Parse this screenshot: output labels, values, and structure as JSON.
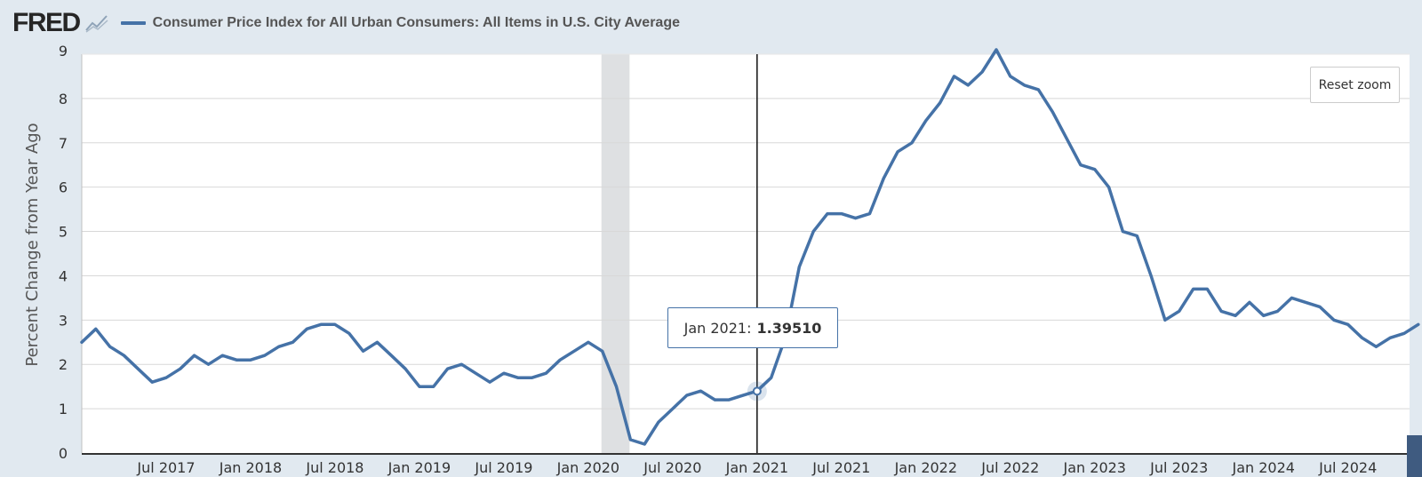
{
  "header": {
    "logo": "FRED",
    "series_name": "Consumer Price Index for All Urban Consumers: All Items in U.S. City Average"
  },
  "reset_zoom_label": "Reset zoom",
  "tooltip": {
    "date": "Jan 2021:",
    "value": "1.39510"
  },
  "colors": {
    "line": "#4572a7",
    "recession": "#dee0e2",
    "grid": "#d8d8d8",
    "plot_bg": "#ffffff",
    "page_bg": "#e1e9f0"
  },
  "chart_data": {
    "type": "line",
    "title": "Consumer Price Index for All Urban Consumers: All Items in U.S. City Average",
    "xlabel": "",
    "ylabel": "Percent Change from Year Ago",
    "ylim": [
      0,
      9
    ],
    "yticks": [
      0,
      1,
      2,
      3,
      4,
      5,
      6,
      7,
      8,
      9
    ],
    "x_start": "2017-01",
    "x_end": "2024-12",
    "xtick_labels": [
      {
        "month_index": 6,
        "label": "Jul 2017"
      },
      {
        "month_index": 12,
        "label": "Jan 2018"
      },
      {
        "month_index": 18,
        "label": "Jul 2018"
      },
      {
        "month_index": 24,
        "label": "Jan 2019"
      },
      {
        "month_index": 30,
        "label": "Jul 2019"
      },
      {
        "month_index": 36,
        "label": "Jan 2020"
      },
      {
        "month_index": 42,
        "label": "Jul 2020"
      },
      {
        "month_index": 48,
        "label": "Jan 2021"
      },
      {
        "month_index": 54,
        "label": "Jul 2021"
      },
      {
        "month_index": 60,
        "label": "Jan 2022"
      },
      {
        "month_index": 66,
        "label": "Jul 2022"
      },
      {
        "month_index": 72,
        "label": "Jan 2023"
      },
      {
        "month_index": 78,
        "label": "Jul 2023"
      },
      {
        "month_index": 84,
        "label": "Jan 2024"
      },
      {
        "month_index": 90,
        "label": "Jul 2024"
      }
    ],
    "recession": {
      "start_month_index": 37,
      "end_month_index": 39
    },
    "crosshair_month_index": 48,
    "highlight": {
      "month_index": 48,
      "value": 1.3951
    },
    "series": [
      {
        "name": "Consumer Price Index for All Urban Consumers: All Items in U.S. City Average",
        "values": [
          2.5,
          2.8,
          2.4,
          2.2,
          1.9,
          1.6,
          1.7,
          1.9,
          2.2,
          2.0,
          2.2,
          2.1,
          2.1,
          2.2,
          2.4,
          2.5,
          2.8,
          2.9,
          2.9,
          2.7,
          2.3,
          2.5,
          2.2,
          1.9,
          1.5,
          1.5,
          1.9,
          2.0,
          1.8,
          1.6,
          1.8,
          1.7,
          1.7,
          1.8,
          2.1,
          2.3,
          2.5,
          2.3,
          1.5,
          0.3,
          0.2,
          0.7,
          1.0,
          1.3,
          1.4,
          1.2,
          1.2,
          1.3,
          1.4,
          1.7,
          2.6,
          4.2,
          5.0,
          5.4,
          5.4,
          5.3,
          5.4,
          6.2,
          6.8,
          7.0,
          7.5,
          7.9,
          8.5,
          8.3,
          8.6,
          9.1,
          8.5,
          8.3,
          8.2,
          7.7,
          7.1,
          6.5,
          6.4,
          6.0,
          5.0,
          4.9,
          4.0,
          3.0,
          3.2,
          3.7,
          3.7,
          3.2,
          3.1,
          3.4,
          3.1,
          3.2,
          3.5,
          3.4,
          3.3,
          3.0,
          2.9,
          2.6,
          2.4,
          2.6,
          2.7,
          2.9
        ]
      }
    ]
  }
}
